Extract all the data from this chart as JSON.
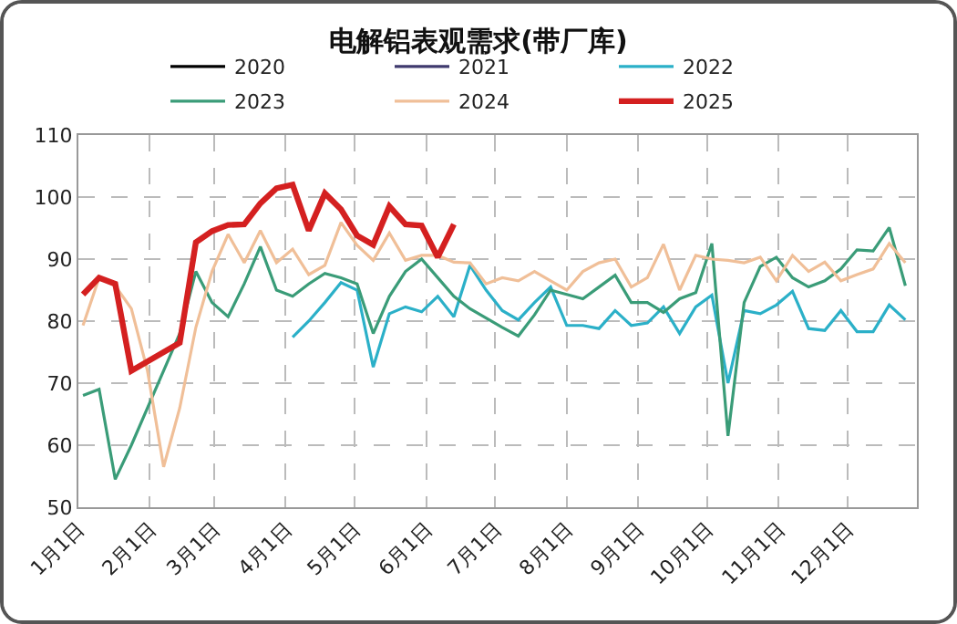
{
  "chart_data": {
    "type": "line",
    "title": "电解铝表观需求(带厂库)",
    "x": [
      "--01-03",
      "--01-10",
      "--01-17",
      "--01-24",
      "--01-31",
      "--02-07",
      "--02-14",
      "--02-21",
      "--02-28",
      "--03-07",
      "--03-14",
      "--03-21",
      "--03-28",
      "--04-04",
      "--04-11",
      "--04-18",
      "--04-25",
      "--05-02",
      "--05-09",
      "--05-16",
      "--05-23",
      "--05-30",
      "--06-06",
      "--06-13",
      "--06-20",
      "--06-27",
      "--07-04",
      "--07-11",
      "--07-18",
      "--07-25",
      "--08-01",
      "--08-08",
      "--08-15",
      "--08-22",
      "--08-29",
      "--09-05",
      "--09-12",
      "--09-19",
      "--09-26",
      "--10-03",
      "--10-10",
      "--10-17",
      "--10-24",
      "--10-31",
      "--11-07",
      "--11-14",
      "--11-21",
      "--11-28",
      "--12-05",
      "--12-12",
      "--12-19",
      "--12-26"
    ],
    "series": [
      {
        "name": "2020",
        "color": "#000000",
        "values": [
          null,
          null,
          null,
          null,
          null,
          null,
          null,
          null,
          null,
          null,
          null,
          null,
          null,
          null,
          null,
          null,
          null,
          null,
          null,
          null,
          null,
          null,
          null,
          null,
          null,
          null,
          null,
          null,
          null,
          null,
          null,
          null,
          null,
          null,
          null,
          null,
          null,
          null,
          null,
          null,
          null,
          null,
          null,
          null,
          null,
          null,
          null,
          null,
          null,
          null,
          null,
          null
        ]
      },
      {
        "name": "2021",
        "color": "#3f3a6e",
        "values": [
          null,
          null,
          null,
          null,
          null,
          null,
          null,
          null,
          null,
          null,
          null,
          null,
          null,
          null,
          null,
          null,
          null,
          null,
          null,
          null,
          null,
          null,
          null,
          null,
          null,
          null,
          null,
          null,
          null,
          null,
          null,
          null,
          null,
          null,
          null,
          null,
          null,
          null,
          null,
          null,
          null,
          null,
          null,
          null,
          null,
          null,
          null,
          null,
          null,
          null,
          null,
          null
        ]
      },
      {
        "name": "2022",
        "color": "#2bb0c8",
        "values": [
          null,
          null,
          null,
          null,
          null,
          null,
          null,
          null,
          null,
          null,
          null,
          null,
          null,
          77.4,
          80,
          83,
          86.2,
          85,
          72.6,
          81.2,
          82.3,
          81.5,
          84,
          80.7,
          89,
          85,
          81.7,
          80.2,
          83,
          85.5,
          79.3,
          79.3,
          78.8,
          81.7,
          79.3,
          79.7,
          82.3,
          78,
          82.3,
          84.2,
          70,
          81.7,
          81.2,
          82.6,
          84.8,
          78.8,
          78.5,
          81.7,
          78.3,
          78.3,
          82.6,
          80.2
        ]
      },
      {
        "name": "2023",
        "color": "#3a9c78",
        "values": [
          68,
          69,
          54.5,
          60,
          66,
          72,
          78,
          88,
          83,
          80.7,
          86,
          92,
          85,
          84,
          86,
          87.7,
          87,
          86,
          78,
          84,
          88,
          90,
          87,
          84,
          82,
          80.5,
          79,
          77.6,
          81,
          85,
          84.3,
          83.6,
          85.5,
          87.4,
          83,
          83,
          81.4,
          83.6,
          84.6,
          92.5,
          61.5,
          83,
          88.8,
          90.3,
          87,
          85.5,
          86.5,
          88.4,
          91.5,
          91.3,
          95.1,
          85.7
        ]
      },
      {
        "name": "2024",
        "color": "#f0bf98",
        "values": [
          79.3,
          87,
          85.7,
          82,
          72,
          56.5,
          66,
          79,
          88,
          94,
          89.4,
          94.6,
          89.4,
          91.6,
          87.5,
          89,
          95.9,
          92.2,
          89.8,
          94.2,
          89.8,
          90.6,
          90.6,
          89.5,
          89.4,
          86,
          87,
          86.5,
          88,
          86.5,
          85,
          88,
          89.4,
          90,
          85.5,
          87,
          92.4,
          85,
          90.6,
          90,
          89.8,
          89.4,
          90.3,
          86.5,
          90.6,
          88,
          89.5,
          86.5,
          87.5,
          88.4,
          92.5,
          89.4
        ]
      },
      {
        "name": "2025",
        "color": "#d42020",
        "values": [
          84.3,
          87,
          86,
          72,
          73.5,
          75,
          76.5,
          92.7,
          94.5,
          95.5,
          95.6,
          99,
          101.4,
          102,
          94.6,
          100.6,
          98,
          93.8,
          92.3,
          98.5,
          95.6,
          95.4,
          90.3,
          95.6,
          null,
          null,
          null,
          null,
          null,
          null,
          null,
          null,
          null,
          null,
          null,
          null,
          null,
          null,
          null,
          null,
          null,
          null,
          null,
          null,
          null,
          null,
          null,
          null,
          null,
          null,
          null,
          null
        ]
      }
    ],
    "xlim": [
      "--01-01",
      "--12-31"
    ],
    "xticks": [
      {
        "value": "--01-01",
        "label": "1月1日"
      },
      {
        "value": "--02-01",
        "label": "2月1日"
      },
      {
        "value": "--03-01",
        "label": "3月1日"
      },
      {
        "value": "--04-01",
        "label": "4月1日"
      },
      {
        "value": "--05-01",
        "label": "5月1日"
      },
      {
        "value": "--06-01",
        "label": "6月1日"
      },
      {
        "value": "--07-01",
        "label": "7月1日"
      },
      {
        "value": "--08-01",
        "label": "8月1日"
      },
      {
        "value": "--09-01",
        "label": "9月1日"
      },
      {
        "value": "--10-01",
        "label": "10月1日"
      },
      {
        "value": "--11-01",
        "label": "11月1日"
      },
      {
        "value": "--12-01",
        "label": "12月1日"
      }
    ],
    "ylim": [
      50,
      110
    ],
    "yticks": [
      50,
      60,
      70,
      80,
      90,
      100,
      110
    ],
    "grid": true,
    "legend": "top",
    "marker": "none",
    "line_style": "solid"
  }
}
